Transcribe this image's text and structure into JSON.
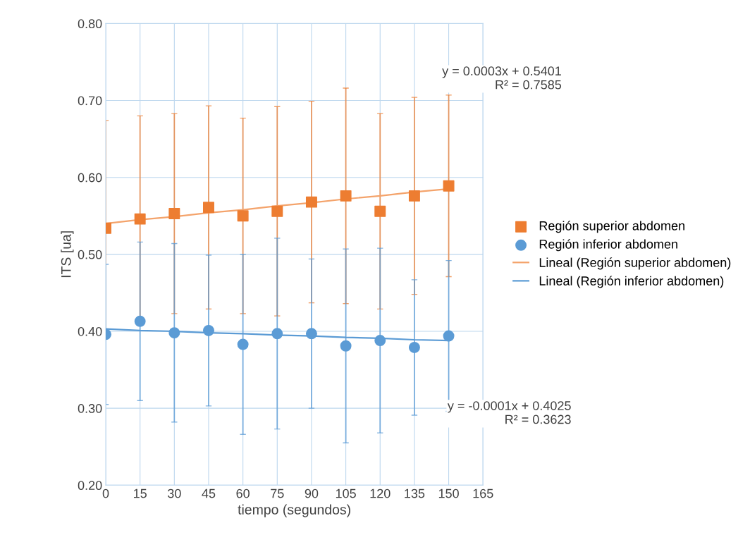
{
  "chart_data": {
    "type": "scatter",
    "ylabel": "ITS [ua]",
    "xlabel": "tiempo (segundos)",
    "x": [
      0,
      15,
      30,
      45,
      60,
      75,
      90,
      105,
      120,
      135,
      150
    ],
    "series": [
      {
        "name": "Región superior abdomen",
        "marker": "square",
        "color": "#ed7d31",
        "values": [
          0.534,
          0.546,
          0.553,
          0.561,
          0.55,
          0.556,
          0.568,
          0.576,
          0.556,
          0.576,
          0.589
        ],
        "errors": [
          0.14,
          0.134,
          0.13,
          0.132,
          0.127,
          0.136,
          0.131,
          0.14,
          0.127,
          0.128,
          0.118
        ]
      },
      {
        "name": "Región inferior abdomen",
        "marker": "circle",
        "color": "#5b9bd5",
        "values": [
          0.396,
          0.413,
          0.398,
          0.401,
          0.383,
          0.397,
          0.397,
          0.381,
          0.388,
          0.379,
          0.394
        ],
        "errors": [
          0.091,
          0.103,
          0.116,
          0.098,
          0.117,
          0.124,
          0.097,
          0.126,
          0.12,
          0.088,
          0.098
        ]
      },
      {
        "name": "Lineal (Región superior abdomen)",
        "type": "line",
        "marker": "none",
        "color": "#f4a36b",
        "values": [
          0.54,
          0.545,
          0.549,
          0.554,
          0.558,
          0.563,
          0.567,
          0.572,
          0.576,
          0.581,
          0.585
        ]
      },
      {
        "name": "Lineal (Región inferior abdomen)",
        "type": "line",
        "marker": "none",
        "color": "#5b9bd5",
        "values": [
          0.403,
          0.401,
          0.4,
          0.398,
          0.397,
          0.395,
          0.394,
          0.392,
          0.391,
          0.389,
          0.388
        ]
      }
    ],
    "annotations": [
      "y = 0.0003x + 0.5401\nR² = 0.7585",
      "y = -0.0001x + 0.4025\nR² = 0.3623"
    ],
    "xlim": [
      0,
      165
    ],
    "xticks": [
      0,
      15,
      30,
      45,
      60,
      75,
      90,
      105,
      120,
      135,
      150,
      165
    ],
    "ylim": [
      0.2,
      0.8
    ],
    "yticks": [
      {
        "value": 0.2,
        "label": "0.20"
      },
      {
        "value": 0.3,
        "label": "0.30"
      },
      {
        "value": 0.4,
        "label": "0.40"
      },
      {
        "value": 0.5,
        "label": "0.50"
      },
      {
        "value": 0.6,
        "label": "0.60"
      },
      {
        "value": 0.7,
        "label": "0.70"
      },
      {
        "value": 0.8,
        "label": "0.80"
      }
    ],
    "grid": true,
    "legend": "right"
  }
}
